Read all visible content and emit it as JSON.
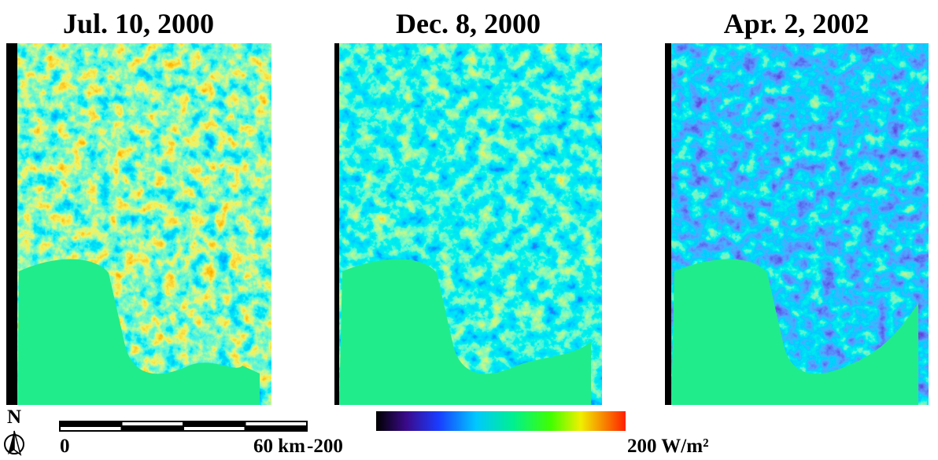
{
  "panels": [
    {
      "title": "Jul. 10, 2000"
    },
    {
      "title": "Dec. 8, 2000"
    },
    {
      "title": "Apr. 2, 2002"
    }
  ],
  "north": "N",
  "scale_bar": {
    "start": "0",
    "end": "60 km"
  },
  "colorbar": {
    "min": "-200",
    "max": "200 W/m²"
  }
}
